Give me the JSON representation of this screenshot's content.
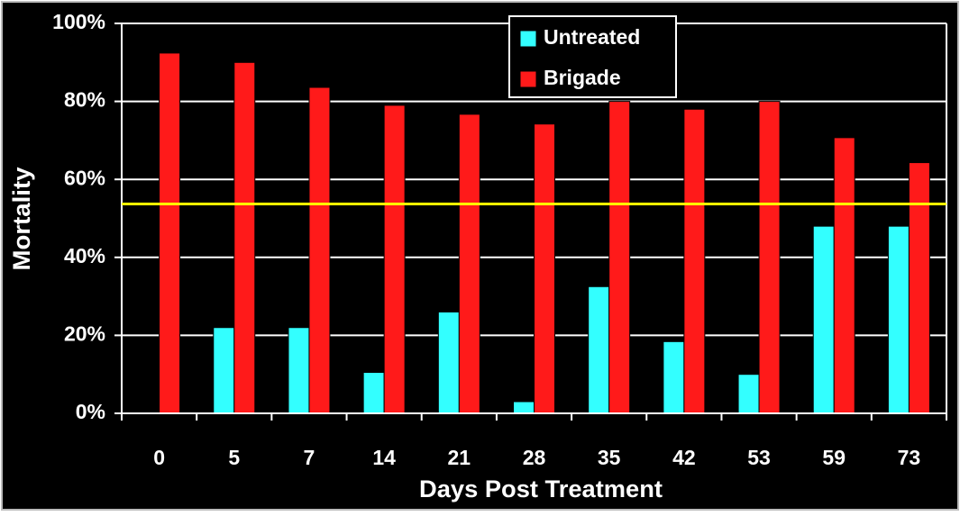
{
  "chart_data": {
    "type": "bar",
    "x_label": "Days Post Treatment",
    "y_label": "Mortality",
    "categories": [
      "0",
      "5",
      "7",
      "14",
      "21",
      "28",
      "35",
      "42",
      "53",
      "59",
      "73"
    ],
    "series": [
      {
        "name": "Untreated",
        "color": "#33ffff",
        "values": [
          0,
          22,
          22,
          10.5,
          26,
          3,
          32.5,
          18.4,
          10,
          48,
          48
        ]
      },
      {
        "name": "Brigade",
        "color": "#ff1a1a",
        "values": [
          92.4,
          90,
          83.6,
          79,
          76.7,
          74.2,
          80,
          78,
          80,
          70.7,
          64.3
        ]
      }
    ],
    "ylim": [
      0,
      100
    ],
    "yticks": [
      {
        "value": 0,
        "label": "0%"
      },
      {
        "value": 20,
        "label": "20%"
      },
      {
        "value": 40,
        "label": "40%"
      },
      {
        "value": 60,
        "label": "60%"
      },
      {
        "value": 80,
        "label": "80%"
      },
      {
        "value": 100,
        "label": "100%"
      }
    ],
    "grid": true,
    "legend": "top-center",
    "reference_line": {
      "value": 53.7,
      "color": "#ffff00"
    }
  }
}
